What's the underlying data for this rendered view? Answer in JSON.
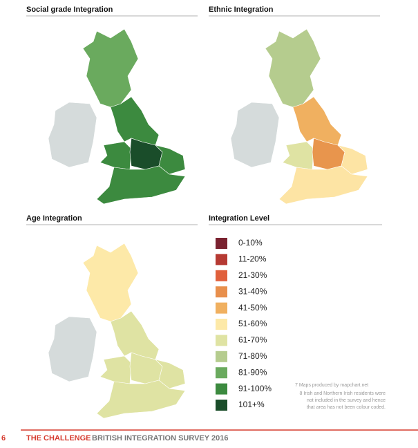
{
  "maps": [
    {
      "title": "Social grade Integration",
      "region_colors": [
        "#d5dbdb",
        "#6aaa5e",
        "#3c8a3f",
        "#3c8a3f",
        "#1a4d2a",
        "#3c8a3f",
        "#3c8a3f"
      ]
    },
    {
      "title": "Ethnic Integration",
      "region_colors": [
        "#d5dbdb",
        "#b5cc8e",
        "#f0b060",
        "#dfe3a3",
        "#e8954d",
        "#fde4a4",
        "#fde4a4"
      ]
    },
    {
      "title": "Age Integration",
      "region_colors": [
        "#d5dbdb",
        "#fde9a8",
        "#dfe3a3",
        "#dfe3a3",
        "#dfe3a3",
        "#dfe3a3",
        "#dfe3a3"
      ]
    }
  ],
  "legend": {
    "title": "Integration Level",
    "items": [
      {
        "label": "0-10%",
        "color": "#7a2230"
      },
      {
        "label": "11-20%",
        "color": "#b63a33"
      },
      {
        "label": "21-30%",
        "color": "#e0603c"
      },
      {
        "label": "31-40%",
        "color": "#e88f4c"
      },
      {
        "label": "41-50%",
        "color": "#f0b060"
      },
      {
        "label": "51-60%",
        "color": "#fde9a8"
      },
      {
        "label": "61-70%",
        "color": "#dfe3a3"
      },
      {
        "label": "71-80%",
        "color": "#b5cc8e"
      },
      {
        "label": "81-90%",
        "color": "#6aaa5e"
      },
      {
        "label": "91-100%",
        "color": "#3c8a3f"
      },
      {
        "label": "101+%",
        "color": "#1a4d2a"
      }
    ]
  },
  "notes": [
    "7 Maps produced by mapchart.net",
    "8 Irish and Northern Irish residents were",
    "not included in the survey and hence",
    "that area has not been colour coded."
  ],
  "footer": {
    "page": "6",
    "section": "THE CHALLENGE",
    "publication": "BRITISH INTEGRATION SURVEY 2016"
  }
}
